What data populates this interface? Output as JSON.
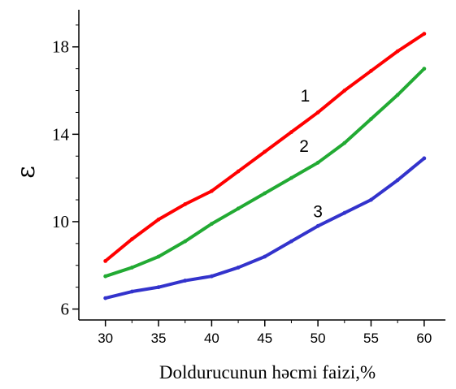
{
  "chart_data": {
    "type": "line",
    "title": "",
    "xlabel": "Doldurucunun həcmi faizi,%",
    "ylabel": "ε",
    "xlim": [
      27.5,
      62
    ],
    "ylim": [
      5.5,
      19.7
    ],
    "x_ticks": [
      30,
      35,
      40,
      45,
      50,
      55,
      60
    ],
    "x_tick_labels": [
      "30",
      "35",
      "40",
      "45",
      "50",
      "55",
      "60"
    ],
    "y_ticks": [
      6,
      10,
      14,
      18
    ],
    "y_tick_labels": [
      "6",
      "10",
      "14",
      "18"
    ],
    "grid": false,
    "legend": "none",
    "series": [
      {
        "name": "1",
        "color": "#ff0000",
        "label_at": [
          48.8,
          15.5
        ],
        "x": [
          30,
          32.5,
          35,
          37.5,
          40,
          42.5,
          45,
          47.5,
          50,
          52.5,
          55,
          57.5,
          60
        ],
        "y": [
          8.2,
          9.2,
          10.1,
          10.8,
          11.4,
          12.3,
          13.2,
          14.1,
          15.0,
          16.0,
          16.9,
          17.8,
          18.6
        ]
      },
      {
        "name": "2",
        "color": "#22aa33",
        "label_at": [
          48.7,
          13.2
        ],
        "x": [
          30,
          32.5,
          35,
          37.5,
          40,
          42.5,
          45,
          47.5,
          50,
          52.5,
          55,
          57.5,
          60
        ],
        "y": [
          7.5,
          7.9,
          8.4,
          9.1,
          9.9,
          10.6,
          11.3,
          12.0,
          12.7,
          13.6,
          14.7,
          15.8,
          17.0
        ]
      },
      {
        "name": "3",
        "color": "#3333cc",
        "label_at": [
          50,
          10.2
        ],
        "x": [
          30,
          32.5,
          35,
          37.5,
          40,
          42.5,
          45,
          47.5,
          50,
          52.5,
          55,
          57.5,
          60
        ],
        "y": [
          6.5,
          6.8,
          7.0,
          7.3,
          7.5,
          7.9,
          8.4,
          9.1,
          9.8,
          10.4,
          11.0,
          11.9,
          12.9
        ]
      }
    ]
  }
}
